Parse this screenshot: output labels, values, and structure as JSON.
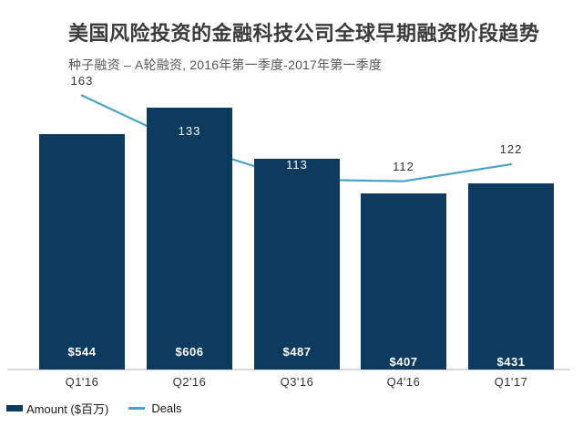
{
  "colors": {
    "bar": "#0d3a5f",
    "line": "#4aa3c6",
    "axis_line": "#d9d9d9",
    "label_dark": "#333333",
    "label_light": "#ffffff",
    "title_text": "#3b3b3b",
    "subtitle_text": "#595959"
  },
  "chart_data": {
    "type": "combo bar+line",
    "title": "美国风险投资的金融科技公司全球早期融资阶段趋势",
    "subtitle": "种子融资 – A轮融资, 2016年第一季度-2017年第一季度",
    "categories": [
      "Q1'16",
      "Q2'16",
      "Q3'16",
      "Q4'16",
      "Q1'17"
    ],
    "series": [
      {
        "name": "Amount ($百万)",
        "type": "bar",
        "values": [
          544,
          606,
          487,
          407,
          431
        ],
        "labels": [
          "$544",
          "$606",
          "$487",
          "$407",
          "$431"
        ],
        "color": "#0d3a5f"
      },
      {
        "name": "Deals",
        "type": "line",
        "values": [
          163,
          133,
          113,
          112,
          122
        ],
        "labels": [
          "163",
          "133",
          "113",
          "112",
          "122"
        ],
        "color": "#4aa3c6"
      }
    ],
    "xlabel": "",
    "ylabel": "",
    "grid": false,
    "value_axes_hidden": true,
    "legend_position": "bottom-left"
  }
}
